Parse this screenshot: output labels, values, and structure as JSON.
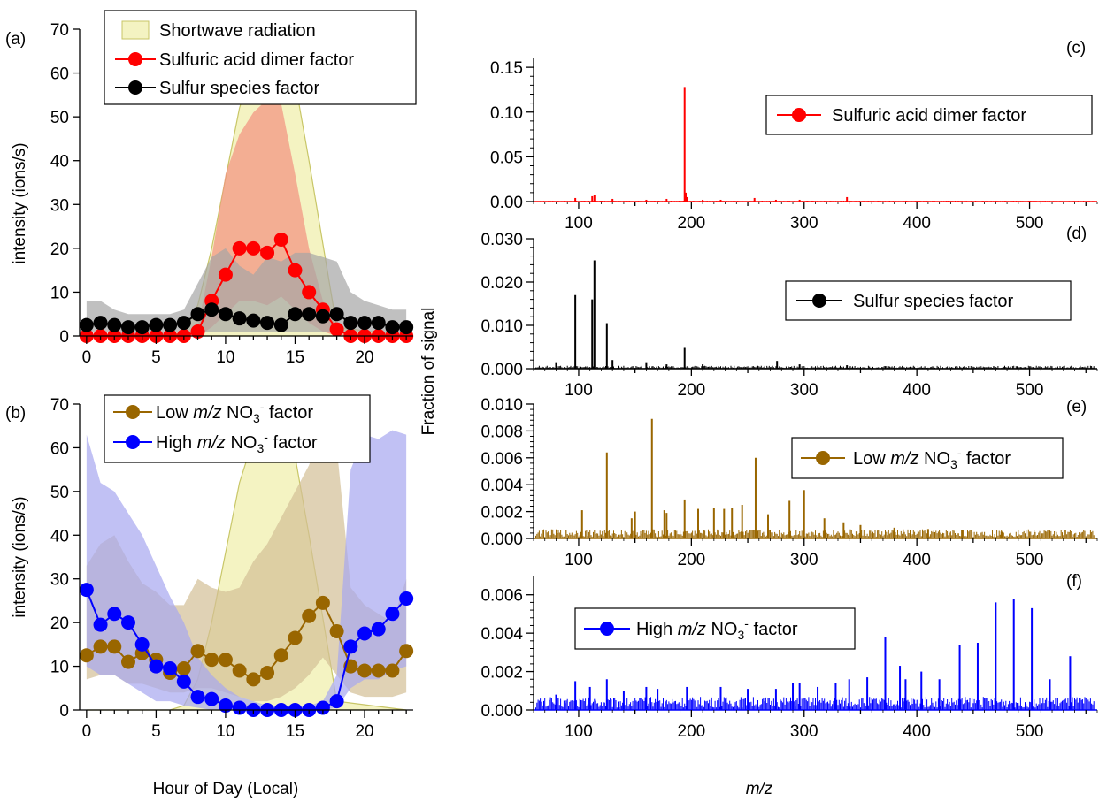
{
  "axis_titles": {
    "left_y_a": "intensity (ions/s)",
    "left_y_b": "intensity (ions/s)",
    "left_x": "Hour of Day (Local)",
    "right_y": "Fraction of signal",
    "right_x": "m/z"
  },
  "colors": {
    "shortwave_fill": "#f4f3c2",
    "shortwave_edge": "#c8c667",
    "sulfuric": "#ff0000",
    "sulfuric_band": "#f2907f",
    "sulfur": "#000000",
    "sulfur_band": "#a5a5a5",
    "low_no3": "#996600",
    "low_no3_band": "#d3bf96",
    "high_no3": "#0000ff",
    "high_no3_band": "#a6a6ef"
  },
  "chart_data": [
    {
      "panel": "(a)",
      "type": "line",
      "xlabel": "Hour of Day (Local)",
      "ylabel": "intensity (ions/s)",
      "xlim": [
        -0.5,
        23.5
      ],
      "ylim": [
        0,
        70
      ],
      "xticks": [
        0,
        5,
        10,
        15,
        20
      ],
      "yticks": [
        0,
        10,
        20,
        30,
        40,
        50,
        60,
        70
      ],
      "legend_position": "top",
      "legend": [
        "Shortwave radiation",
        "Sulfuric acid dimer factor",
        "Sulfur species factor"
      ],
      "shortwave": {
        "name": "Shortwave radiation",
        "x": [
          0,
          6,
          7,
          8,
          9,
          10,
          11,
          12,
          13,
          14,
          15,
          16,
          17,
          18,
          23
        ],
        "y": [
          0,
          0,
          1,
          7,
          20,
          36,
          52,
          62,
          66,
          65,
          58,
          40,
          21,
          2,
          0
        ]
      },
      "series": [
        {
          "name": "Sulfuric acid dimer factor",
          "color": "#ff0000",
          "x": [
            0,
            1,
            2,
            3,
            4,
            5,
            6,
            7,
            8,
            9,
            10,
            11,
            12,
            13,
            14,
            15,
            16,
            17,
            18,
            19,
            20,
            21,
            22,
            23
          ],
          "values": [
            0,
            0,
            0,
            0,
            0,
            0,
            0,
            0,
            1,
            8,
            14,
            20,
            20,
            19,
            22,
            15,
            10,
            6,
            1.5,
            0,
            0,
            0,
            0,
            0
          ],
          "band_upper": [
            0,
            0,
            0,
            0,
            0,
            0,
            0,
            0,
            2,
            18,
            37,
            46,
            51,
            54,
            53,
            37,
            20,
            8,
            2,
            0,
            0,
            0,
            0,
            0
          ],
          "band_lower": [
            0,
            0,
            0,
            0,
            0,
            0,
            0,
            0,
            0,
            2,
            5,
            8,
            8,
            7,
            9,
            6,
            3,
            1,
            0,
            0,
            0,
            0,
            0,
            0
          ]
        },
        {
          "name": "Sulfur species factor",
          "color": "#000000",
          "x": [
            0,
            1,
            2,
            3,
            4,
            5,
            6,
            7,
            8,
            9,
            10,
            11,
            12,
            13,
            14,
            15,
            16,
            17,
            18,
            19,
            20,
            21,
            22,
            23
          ],
          "values": [
            2.5,
            3,
            2.5,
            2,
            2,
            2.5,
            2.5,
            3,
            5,
            6,
            5,
            4,
            3.5,
            3,
            2.5,
            5,
            5,
            4.5,
            5,
            3,
            3,
            3,
            2,
            2
          ],
          "band_upper": [
            8,
            8,
            6,
            5,
            5,
            5,
            5,
            6,
            12,
            18,
            20,
            16,
            14,
            18,
            17,
            19,
            19,
            18,
            17,
            10,
            8,
            7,
            6,
            6
          ],
          "band_lower": [
            0.5,
            1,
            0.5,
            0.5,
            0.5,
            0.5,
            0.5,
            1,
            1,
            1,
            1,
            1,
            1,
            1,
            1,
            1,
            1,
            1,
            1,
            1,
            1,
            0.5,
            0.5,
            0.5
          ]
        }
      ]
    },
    {
      "panel": "(b)",
      "type": "line",
      "xlabel": "Hour of Day (Local)",
      "ylabel": "intensity (ions/s)",
      "xlim": [
        -0.5,
        23.5
      ],
      "ylim": [
        0,
        70
      ],
      "xticks": [
        0,
        5,
        10,
        15,
        20
      ],
      "yticks": [
        0,
        10,
        20,
        30,
        40,
        50,
        60,
        70
      ],
      "legend_position": "top",
      "legend": [
        "Low m/z NO3- factor",
        "High m/z NO3- factor"
      ],
      "shortwave": {
        "x": [
          0,
          6,
          7,
          8,
          9,
          10,
          11,
          12,
          13,
          14,
          15,
          16,
          17,
          18,
          23
        ],
        "y": [
          0,
          0,
          1,
          7,
          20,
          36,
          52,
          62,
          66,
          65,
          58,
          40,
          21,
          2,
          0
        ]
      },
      "series": [
        {
          "name": "Low m/z NO3- factor",
          "color": "#996600",
          "x": [
            0,
            1,
            2,
            3,
            4,
            5,
            6,
            7,
            8,
            9,
            10,
            11,
            12,
            13,
            14,
            15,
            16,
            17,
            18,
            19,
            20,
            21,
            22,
            23
          ],
          "values": [
            12.5,
            14.5,
            14.5,
            11,
            13,
            11.5,
            8.5,
            9.5,
            13.5,
            11.5,
            11.5,
            9,
            7,
            8.5,
            12.5,
            16.5,
            21.5,
            24.5,
            18,
            10,
            9,
            9,
            9,
            13.5
          ],
          "band_upper": [
            33,
            38,
            40,
            34,
            29,
            27,
            24,
            24,
            30,
            28,
            27,
            28,
            34,
            38,
            44,
            50,
            56,
            65,
            60,
            28,
            24,
            22,
            20,
            30
          ],
          "band_lower": [
            7,
            8,
            8,
            6,
            6,
            5,
            4,
            4,
            5,
            5,
            4,
            3,
            2,
            2,
            3,
            5,
            8,
            12,
            8,
            4,
            3,
            3,
            3,
            4
          ]
        },
        {
          "name": "High m/z NO3- factor",
          "color": "#0000ff",
          "x": [
            0,
            1,
            2,
            3,
            4,
            5,
            6,
            7,
            8,
            9,
            10,
            11,
            12,
            13,
            14,
            15,
            16,
            17,
            18,
            19,
            20,
            21,
            22,
            23
          ],
          "values": [
            27.5,
            19.5,
            22,
            20,
            15,
            10,
            9.5,
            6.5,
            3,
            2.5,
            1,
            0.5,
            0,
            0,
            0,
            0,
            0,
            0.5,
            2,
            14.5,
            17.5,
            18.5,
            22,
            25.5
          ],
          "band_upper": [
            63,
            52,
            50,
            45,
            40,
            33,
            26,
            20,
            12,
            8,
            5,
            3,
            2,
            1,
            1,
            1,
            1,
            2,
            8,
            55,
            63,
            62,
            64,
            63
          ],
          "band_lower": [
            10,
            8,
            8,
            6,
            4,
            2,
            2,
            1,
            0.5,
            0,
            0,
            0,
            0,
            0,
            0,
            0,
            0,
            0,
            0.5,
            5,
            7,
            7,
            9,
            10
          ]
        }
      ]
    },
    {
      "panel": "(c)",
      "type": "bar",
      "name": "Sulfuric acid dimer factor",
      "color": "#ff0000",
      "xlim": [
        60,
        560
      ],
      "ylim": [
        0,
        0.16
      ],
      "xticks": [
        100,
        200,
        300,
        400,
        500
      ],
      "yticks": [
        0.0,
        0.05,
        0.1,
        0.15
      ],
      "ytick_labels": [
        "0.00",
        "0.05",
        "0.10",
        "0.15"
      ],
      "legend_position": "upper-right",
      "noise_level": 0.0006,
      "peaks": [
        [
          97,
          0.004
        ],
        [
          112,
          0.006
        ],
        [
          114,
          0.007
        ],
        [
          130,
          0.003
        ],
        [
          160,
          0.002
        ],
        [
          178,
          0.003
        ],
        [
          194,
          0.128
        ],
        [
          195,
          0.01
        ],
        [
          196,
          0.005
        ],
        [
          210,
          0.002
        ],
        [
          226,
          0.002
        ],
        [
          256,
          0.004
        ],
        [
          275,
          0.002
        ],
        [
          296,
          0.002
        ],
        [
          338,
          0.005
        ]
      ]
    },
    {
      "panel": "(d)",
      "type": "bar",
      "name": "Sulfur species factor",
      "color": "#000000",
      "xlim": [
        60,
        560
      ],
      "ylim": [
        0,
        0.03
      ],
      "xticks": [
        100,
        200,
        300,
        400,
        500
      ],
      "yticks": [
        0.0,
        0.01,
        0.02,
        0.03
      ],
      "ytick_labels": [
        "0.000",
        "0.010",
        "0.020",
        "0.030"
      ],
      "legend_position": "upper-right",
      "noise_level": 0.0004,
      "peaks": [
        [
          80,
          0.0015
        ],
        [
          97,
          0.017
        ],
        [
          112,
          0.016
        ],
        [
          114,
          0.025
        ],
        [
          125,
          0.0105
        ],
        [
          130,
          0.002
        ],
        [
          160,
          0.0015
        ],
        [
          178,
          0.001
        ],
        [
          194,
          0.0048
        ],
        [
          210,
          0.001
        ],
        [
          276,
          0.0018
        ],
        [
          296,
          0.001
        ],
        [
          338,
          0.0008
        ]
      ]
    },
    {
      "panel": "(e)",
      "type": "bar",
      "name": "Low m/z NO3- factor",
      "color": "#996600",
      "xlim": [
        60,
        560
      ],
      "ylim": [
        0,
        0.01
      ],
      "xticks": [
        100,
        200,
        300,
        400,
        500
      ],
      "yticks": [
        0.0,
        0.002,
        0.004,
        0.006,
        0.008,
        0.01
      ],
      "ytick_labels": [
        "0.000",
        "0.002",
        "0.004",
        "0.006",
        "0.008",
        "0.010"
      ],
      "legend_position": "upper-right",
      "noise_level": 0.0004,
      "peaks": [
        [
          103,
          0.0021
        ],
        [
          125,
          0.0064
        ],
        [
          147,
          0.0015
        ],
        [
          150,
          0.002
        ],
        [
          165,
          0.0089
        ],
        [
          176,
          0.0021
        ],
        [
          178,
          0.0019
        ],
        [
          194,
          0.0029
        ],
        [
          206,
          0.0022
        ],
        [
          220,
          0.0023
        ],
        [
          229,
          0.0022
        ],
        [
          236,
          0.0023
        ],
        [
          245,
          0.0025
        ],
        [
          257,
          0.006
        ],
        [
          268,
          0.0018
        ],
        [
          287,
          0.0028
        ],
        [
          300,
          0.0036
        ],
        [
          318,
          0.0015
        ],
        [
          335,
          0.0012
        ],
        [
          350,
          0.001
        ],
        [
          380,
          0.0008
        ],
        [
          410,
          0.0007
        ],
        [
          440,
          0.0006
        ],
        [
          475,
          0.0005
        ]
      ]
    },
    {
      "panel": "(f)",
      "type": "bar",
      "name": "High m/z NO3- factor",
      "color": "#0000ff",
      "xlim": [
        60,
        560
      ],
      "ylim": [
        0,
        0.007
      ],
      "xticks": [
        100,
        200,
        300,
        400,
        500
      ],
      "yticks": [
        0.0,
        0.002,
        0.004,
        0.006
      ],
      "ytick_labels": [
        "0.000",
        "0.002",
        "0.004",
        "0.006"
      ],
      "legend_position": "upper-left",
      "noise_level": 0.0004,
      "peaks": [
        [
          80,
          0.0008
        ],
        [
          97,
          0.0015
        ],
        [
          110,
          0.0012
        ],
        [
          125,
          0.0016
        ],
        [
          140,
          0.001
        ],
        [
          160,
          0.0012
        ],
        [
          170,
          0.0011
        ],
        [
          196,
          0.0012
        ],
        [
          226,
          0.0012
        ],
        [
          250,
          0.0011
        ],
        [
          275,
          0.0011
        ],
        [
          290,
          0.0014
        ],
        [
          296,
          0.0014
        ],
        [
          312,
          0.0012
        ],
        [
          328,
          0.0014
        ],
        [
          340,
          0.0016
        ],
        [
          356,
          0.0017
        ],
        [
          372,
          0.0038
        ],
        [
          385,
          0.0023
        ],
        [
          390,
          0.0016
        ],
        [
          404,
          0.002
        ],
        [
          420,
          0.0016
        ],
        [
          438,
          0.0034
        ],
        [
          454,
          0.0035
        ],
        [
          470,
          0.0056
        ],
        [
          486,
          0.0058
        ],
        [
          502,
          0.0053
        ],
        [
          518,
          0.0016
        ],
        [
          536,
          0.0028
        ]
      ]
    }
  ]
}
